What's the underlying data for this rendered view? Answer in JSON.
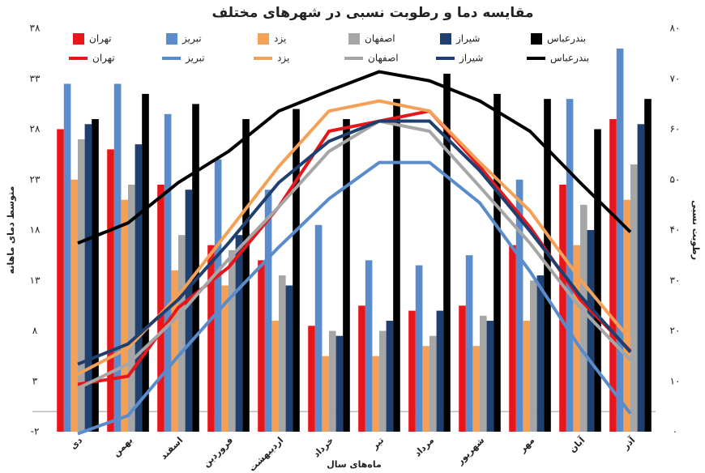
{
  "chart_data": {
    "type": "bar-line",
    "title": "مقایسه دما و رطوبت نسبی در شهرهای مختلف",
    "y_label": "متوسط دمای ماهانه",
    "y2_label": "رطوبت نسبی",
    "x_label": "ماه‌های سال",
    "categories": [
      "دی",
      "بهمن",
      "اسفند",
      "فروردین",
      "اردیبهشت",
      "خرداد",
      "تیر",
      "مرداد",
      "شهریور",
      "مهر",
      "آبان",
      "آذر"
    ],
    "ylim": [
      -2,
      38
    ],
    "yticks": [
      {
        "value": -2,
        "label": "-۲"
      },
      {
        "value": 3,
        "label": "۳"
      },
      {
        "value": 8,
        "label": "۸"
      },
      {
        "value": 13,
        "label": "۱۳"
      },
      {
        "value": 18,
        "label": "۱۸"
      },
      {
        "value": 23,
        "label": "۲۳"
      },
      {
        "value": 28,
        "label": "۲۸"
      },
      {
        "value": 33,
        "label": "۳۳"
      },
      {
        "value": 38,
        "label": "۳۸"
      }
    ],
    "y2lim": [
      0,
      80
    ],
    "y2ticks": [
      {
        "value": 0,
        "label": "۰"
      },
      {
        "value": 10,
        "label": "۱۰"
      },
      {
        "value": 20,
        "label": "۲۰"
      },
      {
        "value": 30,
        "label": "۳۰"
      },
      {
        "value": 40,
        "label": "۴۰"
      },
      {
        "value": 50,
        "label": "۵۰"
      },
      {
        "value": 60,
        "label": "۶۰"
      },
      {
        "value": 70,
        "label": "۷۰"
      },
      {
        "value": 80,
        "label": "۸۰"
      }
    ],
    "series": [
      {
        "name": "تهران",
        "type": "bar",
        "axis": "y2",
        "color": "#e8161b",
        "values": [
          60,
          56,
          49,
          37,
          34,
          21,
          25,
          24,
          25,
          37,
          49,
          62
        ]
      },
      {
        "name": "تبریز",
        "type": "bar",
        "axis": "y2",
        "color": "#5a8ccb",
        "values": [
          69,
          69,
          63,
          54,
          48,
          41,
          34,
          33,
          35,
          50,
          66,
          76
        ]
      },
      {
        "name": "یزد",
        "type": "bar",
        "axis": "y2",
        "color": "#f4a157",
        "values": [
          50,
          46,
          32,
          29,
          22,
          15,
          15,
          17,
          17,
          22,
          37,
          46
        ]
      },
      {
        "name": "اصفهان",
        "type": "bar",
        "axis": "y2",
        "color": "#a6a6a6",
        "values": [
          58,
          49,
          39,
          36,
          31,
          20,
          20,
          19,
          23,
          30,
          45,
          53
        ]
      },
      {
        "name": "شیراز",
        "type": "bar",
        "axis": "y2",
        "color": "#1f3f6e",
        "values": [
          61,
          57,
          48,
          39,
          29,
          19,
          22,
          24,
          22,
          31,
          40,
          61
        ]
      },
      {
        "name": "بندرعباس",
        "type": "bar",
        "axis": "y2",
        "color": "#000000",
        "values": [
          62,
          67,
          65,
          62,
          64,
          62,
          66,
          71,
          67,
          66,
          60,
          66
        ]
      },
      {
        "name": "تهران",
        "type": "line",
        "color": "#e8161b",
        "values": [
          2.7,
          3.5,
          10.3,
          14.3,
          20.3,
          27.8,
          28.8,
          29.8,
          24.3,
          18.3,
          11.1,
          6.0
        ]
      },
      {
        "name": "تبریز",
        "type": "line",
        "color": "#5a8ccb",
        "values": [
          -2.2,
          -0.4,
          5.5,
          11.1,
          16.3,
          21.1,
          24.7,
          24.7,
          20.7,
          13.9,
          6.3,
          -0.2
        ]
      },
      {
        "name": "یزد",
        "type": "line",
        "color": "#f4a157",
        "values": [
          3.7,
          6.3,
          11.5,
          17.9,
          24.3,
          29.8,
          30.8,
          29.8,
          24.7,
          19.9,
          13.1,
          7.1
        ]
      },
      {
        "name": "اصفهان",
        "type": "line",
        "color": "#a6a6a6",
        "values": [
          2.3,
          4.7,
          9.5,
          15.1,
          20.3,
          25.8,
          28.8,
          27.8,
          22.3,
          16.7,
          10.3,
          5.1
        ]
      },
      {
        "name": "شیراز",
        "type": "line",
        "color": "#1f3f6e",
        "values": [
          4.7,
          6.7,
          11.1,
          16.7,
          22.7,
          26.8,
          28.8,
          28.8,
          23.9,
          17.9,
          11.5,
          5.9
        ]
      },
      {
        "name": "بندرعباس",
        "type": "line",
        "color": "#000000",
        "values": [
          16.7,
          18.7,
          22.7,
          25.8,
          29.8,
          31.8,
          33.7,
          32.8,
          30.8,
          27.8,
          22.7,
          17.8
        ]
      }
    ]
  }
}
